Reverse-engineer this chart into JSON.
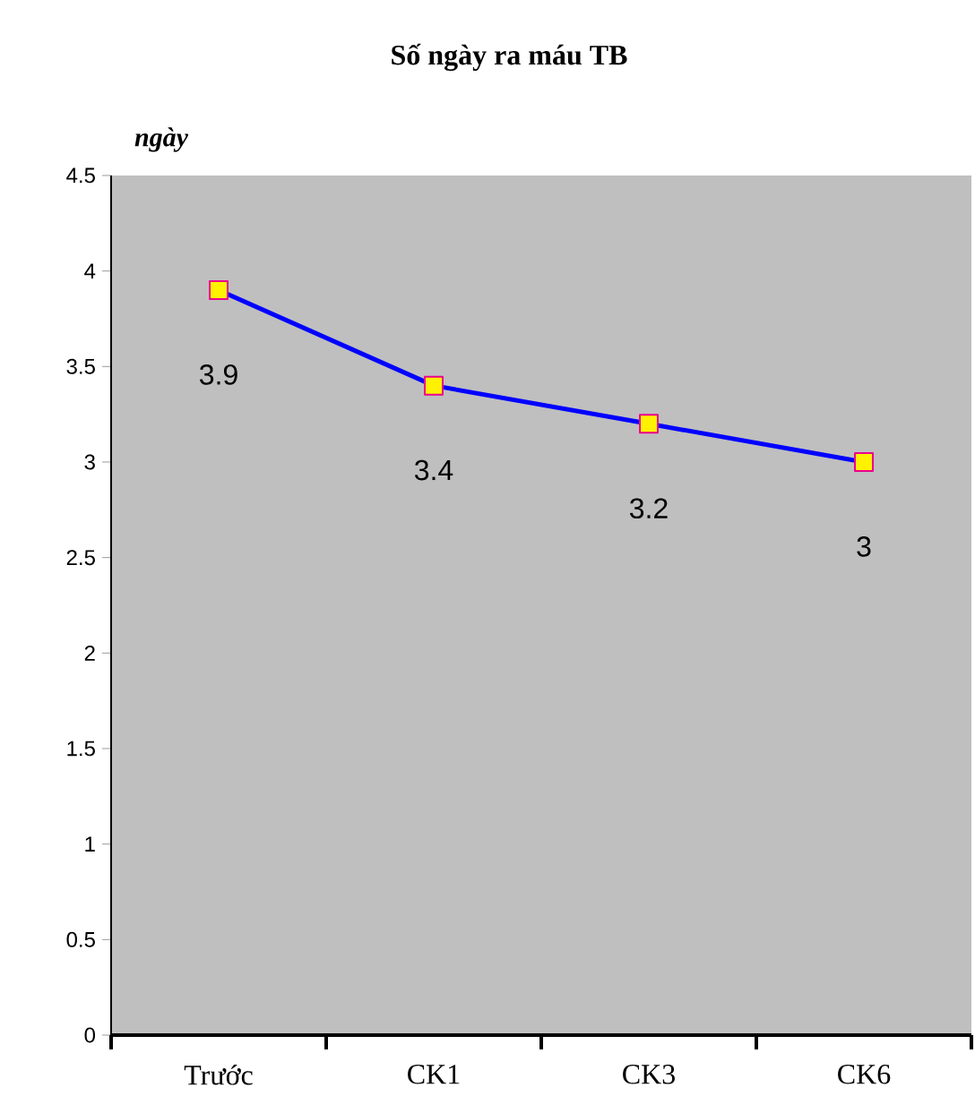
{
  "chart_data": {
    "type": "line",
    "title": "Số ngày ra máu TB",
    "ylabel": "ngày",
    "categories": [
      "Trước",
      "CK1",
      "CK3",
      "CK6"
    ],
    "values": [
      3.9,
      3.4,
      3.2,
      3
    ],
    "color": "#0000ff",
    "marker": "square",
    "data_labels": true,
    "grid": false,
    "ylim": [
      0,
      4.5
    ],
    "yticks": [
      0,
      0.5,
      1,
      1.5,
      2,
      2.5,
      3,
      3.5,
      4,
      4.5
    ]
  }
}
